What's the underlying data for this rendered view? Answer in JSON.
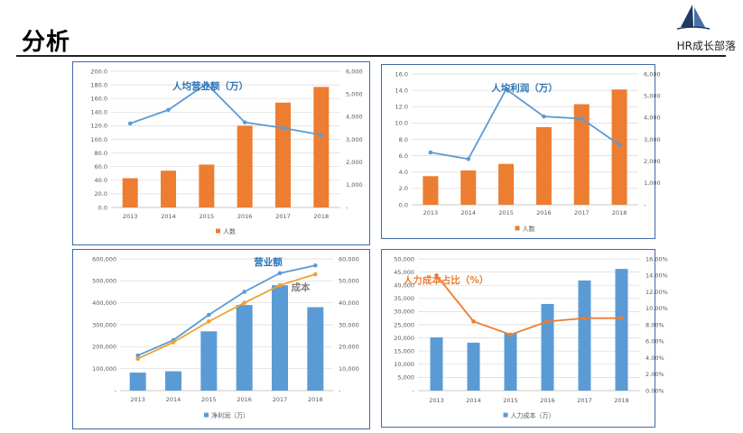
{
  "header": {
    "title": "分析",
    "brand": "HR成长部落"
  },
  "colors": {
    "orange": "#ed7d31",
    "blue": "#5b9bd5",
    "panel_border": "#3e6aa8",
    "title_blue": "#2e75b6",
    "grey": "#808080"
  },
  "chart_data": [
    {
      "id": "c1",
      "type": "bar",
      "categories": [
        "2013",
        "2014",
        "2015",
        "2016",
        "2017",
        "2018"
      ],
      "series": [
        {
          "name": "人数",
          "kind": "bar",
          "axis": "left",
          "color": "#ed7d31",
          "values": [
            43,
            54,
            63,
            120,
            154,
            177
          ]
        },
        {
          "kind": "line",
          "axis": "right",
          "color": "#5b9bd5",
          "values": [
            3700,
            4300,
            5450,
            3750,
            3500,
            3200
          ]
        }
      ],
      "annotations": [
        {
          "text": "人均营业额（万）",
          "color": "#2e75b6"
        }
      ],
      "yleft": {
        "min": 0,
        "max": 200,
        "step": 20,
        "ticks": [
          "0.0",
          "20.0",
          "40.0",
          "60.0",
          "80.0",
          "100.0",
          "120.0",
          "140.0",
          "160.0",
          "180.0",
          "200.0"
        ]
      },
      "yright": {
        "min": 0,
        "max": 6000,
        "step": 1000,
        "ticks": [
          "-",
          "1,000",
          "2,000",
          "3,000",
          "4,000",
          "5,000",
          "6,000"
        ]
      },
      "legend": {
        "position": "bottom",
        "label": "人数",
        "color": "#ed7d31"
      }
    },
    {
      "id": "c2",
      "type": "bar",
      "categories": [
        "2013",
        "2014",
        "2015",
        "2016",
        "2017",
        "2018"
      ],
      "series": [
        {
          "name": "人数",
          "kind": "bar",
          "axis": "left",
          "color": "#ed7d31",
          "values": [
            3.5,
            4.2,
            5.0,
            9.5,
            12.3,
            14.1
          ]
        },
        {
          "kind": "line",
          "axis": "right",
          "color": "#5b9bd5",
          "values": [
            2400,
            2100,
            5300,
            4050,
            3950,
            2750
          ]
        }
      ],
      "annotations": [
        {
          "text": "人均利润（万）",
          "color": "#2e75b6"
        }
      ],
      "yleft": {
        "min": 0,
        "max": 16,
        "step": 2,
        "ticks": [
          "0.0",
          "2.0",
          "4.0",
          "6.0",
          "8.0",
          "10.0",
          "12.0",
          "14.0",
          "16.0"
        ]
      },
      "yright": {
        "min": 0,
        "max": 6000,
        "step": 1000,
        "ticks": [
          "-",
          "1,000",
          "2,000",
          "3,000",
          "4,000",
          "5,000",
          "6,000"
        ]
      },
      "legend": {
        "position": "bottom",
        "label": "人数",
        "color": "#ed7d31"
      }
    },
    {
      "id": "c3",
      "type": "bar",
      "categories": [
        "2013",
        "2014",
        "2015",
        "2016",
        "2017",
        "2018"
      ],
      "series": [
        {
          "name": "净利润（万）",
          "kind": "bar",
          "axis": "left",
          "color": "#5b9bd5",
          "values": [
            82000,
            88000,
            270000,
            390000,
            480000,
            380000
          ]
        },
        {
          "name": "营业额",
          "kind": "line",
          "axis": "right",
          "color": "#5b9bd5",
          "values": [
            16000,
            23000,
            34500,
            45000,
            53500,
            57000
          ]
        },
        {
          "name": "成本",
          "kind": "line",
          "axis": "right",
          "color": "#f0a030",
          "values": [
            14500,
            22000,
            31500,
            40000,
            48000,
            53000
          ]
        }
      ],
      "annotations": [
        {
          "text": "营业额",
          "color": "#2e75b6"
        },
        {
          "text": "成本",
          "color": "#808080"
        }
      ],
      "yleft": {
        "min": 0,
        "max": 600000,
        "step": 100000,
        "ticks": [
          "-",
          "100,000",
          "200,000",
          "300,000",
          "400,000",
          "500,000",
          "600,000"
        ]
      },
      "yright": {
        "min": 0,
        "max": 60000,
        "step": 10000,
        "ticks": [
          "-",
          "10,000",
          "20,000",
          "30,000",
          "40,000",
          "50,000",
          "60,000"
        ]
      },
      "legend": {
        "position": "bottom",
        "label": "净利润（万）",
        "color": "#5b9bd5"
      }
    },
    {
      "id": "c4",
      "type": "bar",
      "categories": [
        "2013",
        "2014",
        "2015",
        "2016",
        "2017",
        "2018"
      ],
      "series": [
        {
          "name": "人力成本（万）",
          "kind": "bar",
          "axis": "left",
          "color": "#5b9bd5",
          "values": [
            20200,
            18200,
            21700,
            32900,
            41800,
            46200
          ]
        },
        {
          "kind": "line",
          "axis": "right",
          "color": "#ed7d31",
          "values": [
            14.0,
            8.4,
            6.8,
            8.4,
            8.8,
            8.8
          ]
        }
      ],
      "annotations": [
        {
          "text": "人力成本占比（%）",
          "color": "#ed7d31"
        }
      ],
      "yleft": {
        "min": 0,
        "max": 50000,
        "step": 5000,
        "ticks": [
          "-",
          "5,000",
          "10,000",
          "15,000",
          "20,000",
          "25,000",
          "30,000",
          "35,000",
          "40,000",
          "45,000",
          "50,000"
        ]
      },
      "yright": {
        "min": 0,
        "max": 16,
        "step": 2,
        "ticks": [
          "0.00%",
          "2.00%",
          "4.00%",
          "6.00%",
          "8.00%",
          "10.00%",
          "12.00%",
          "14.00%",
          "16.00%"
        ]
      },
      "legend": {
        "position": "bottom",
        "label": "人力成本（万）",
        "color": "#5b9bd5"
      }
    }
  ]
}
